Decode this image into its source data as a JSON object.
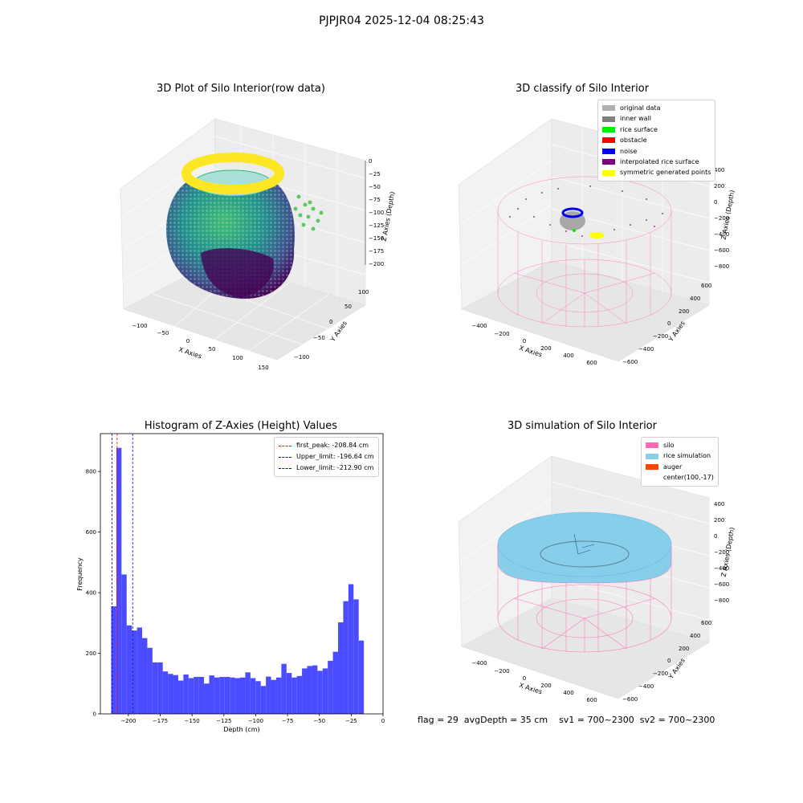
{
  "suptitle": "PJPJR04 2025-12-04 08:25:43",
  "panels": {
    "raw": {
      "title": "3D Plot of Silo Interior(row data)",
      "xlabel": "X Axies",
      "ylabel": "Y Axies",
      "zlabel": "Z Axies (Depth)",
      "xticks": [
        "−100",
        "−50",
        "0",
        "50",
        "100",
        "150"
      ],
      "yticks": [
        "100",
        "50",
        "0",
        "−50",
        "−100"
      ],
      "zticks": [
        "0",
        "−25",
        "−50",
        "−75",
        "−100",
        "−125",
        "−150",
        "−175",
        "−200"
      ]
    },
    "classify": {
      "title": "3D classify of Silo Interior",
      "xlabel": "X Axies",
      "ylabel": "Y Axies",
      "zlabel": "Z Axies (Depth)",
      "xticks": [
        "−400",
        "−200",
        "0",
        "200",
        "400",
        "600"
      ],
      "yticks": [
        "600",
        "400",
        "200",
        "0",
        "−200",
        "−400",
        "−600"
      ],
      "zticks": [
        "400",
        "200",
        "0",
        "−200",
        "−400",
        "−600",
        "−800"
      ],
      "legend": [
        {
          "label": "original data",
          "color": "#b0b0b0"
        },
        {
          "label": "inner wall",
          "color": "#808080"
        },
        {
          "label": "rice surface",
          "color": "#00ee00"
        },
        {
          "label": "obstacle",
          "color": "#ff0000"
        },
        {
          "label": "noise",
          "color": "#0000ee"
        },
        {
          "label": "interpolated rice surface",
          "color": "#800080"
        },
        {
          "label": "symmetric generated points",
          "color": "#ffff00"
        }
      ]
    },
    "simulation": {
      "title": "3D simulation of Silo Interior",
      "xlabel": "X Axies",
      "ylabel": "Y Axies",
      "zlabel": "Z Axies (Depth)",
      "xticks": [
        "−400",
        "−200",
        "0",
        "200",
        "400",
        "600"
      ],
      "yticks": [
        "600",
        "400",
        "200",
        "0",
        "−200",
        "−400",
        "−600"
      ],
      "zticks": [
        "400",
        "200",
        "0",
        "−200",
        "−400",
        "−600",
        "−800"
      ],
      "legend": [
        {
          "label": "silo",
          "color": "#ff69b4"
        },
        {
          "label": "rice simulation",
          "color": "#87ceeb"
        },
        {
          "label": "auger",
          "color": "#ff4500"
        },
        {
          "label": "center(100,-17)",
          "color": ""
        }
      ]
    }
  },
  "footer": {
    "flag": "flag = 29",
    "avg": "avgDepth = 35 cm",
    "sv1": "sv1 = 700~2300",
    "sv2": "sv2 = 700~2300"
  },
  "chart_data": [
    {
      "type": "bar",
      "title": "Histogram of Z-Axies (Height) Values",
      "xlabel": "Depth (cm)",
      "ylabel": "Frequency",
      "xlim": [
        -222,
        0
      ],
      "ylim": [
        0,
        925
      ],
      "xticks": [
        -200,
        -175,
        -150,
        -125,
        -100,
        -75,
        -50,
        -25,
        0
      ],
      "yticks": [
        0,
        200,
        400,
        600,
        800
      ],
      "bin_start": -213.5,
      "bin_width": 4.05,
      "values": [
        355,
        878,
        460,
        292,
        275,
        285,
        250,
        218,
        170,
        170,
        140,
        132,
        128,
        110,
        130,
        118,
        122,
        122,
        100,
        127,
        120,
        122,
        122,
        120,
        118,
        120,
        137,
        118,
        108,
        92,
        123,
        112,
        120,
        165,
        135,
        120,
        125,
        150,
        158,
        160,
        142,
        150,
        175,
        205,
        302,
        372,
        428,
        378,
        242
      ],
      "vlines": [
        {
          "label": "first_peak: -208.84 cm",
          "x": -208.84,
          "color": "#ff0000"
        },
        {
          "label": "Upper_limit: -196.64 cm",
          "x": -196.64,
          "color": "#0000cc"
        },
        {
          "label": "Lower_limit: -212.90 cm",
          "x": -212.9,
          "color": "#0000cc"
        }
      ],
      "bar_color": "#4b4bff"
    }
  ]
}
